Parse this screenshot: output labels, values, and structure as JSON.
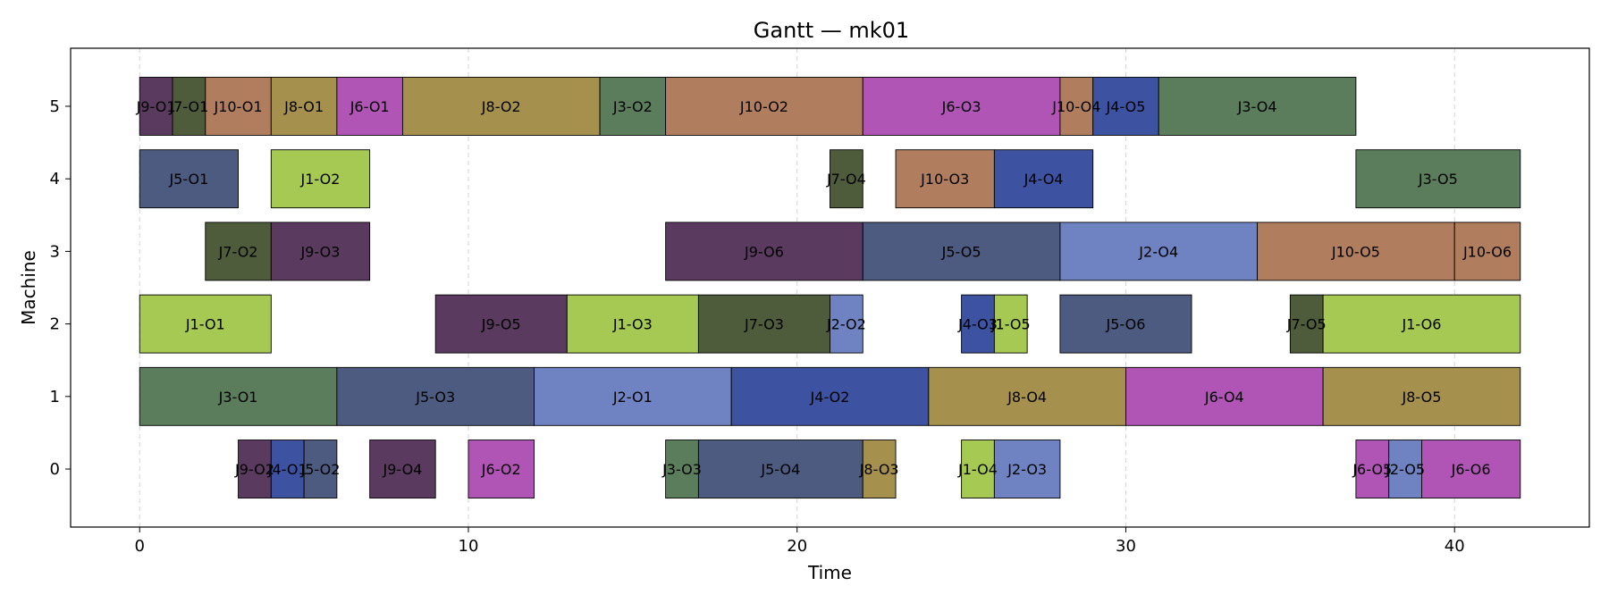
{
  "chart_data": {
    "type": "gantt",
    "title": "Gantt — mk01",
    "xlabel": "Time",
    "ylabel": "Machine",
    "xlim": [
      -2.1,
      44.1
    ],
    "ylim": [
      -0.8,
      5.8
    ],
    "xticks": [
      0,
      10,
      20,
      30,
      40
    ],
    "yticks": [
      0,
      1,
      2,
      3,
      4,
      5
    ],
    "grid": "vertical dashed at x ticks",
    "job_colors": {
      "J1": "#a6c954",
      "J2": "#6f83c2",
      "J3": "#5b7d5b",
      "J4": "#3d52a0",
      "J5": "#4d5b80",
      "J6": "#b055b5",
      "J7": "#4f5c3b",
      "J8": "#a6904e",
      "J9": "#5a3b5f",
      "J10": "#b07e5f"
    },
    "operations": [
      {
        "machine": 5,
        "start": 0,
        "end": 1,
        "job": "J9",
        "label": "J9-O1"
      },
      {
        "machine": 5,
        "start": 1,
        "end": 2,
        "job": "J7",
        "label": "J7-O1"
      },
      {
        "machine": 5,
        "start": 2,
        "end": 4,
        "job": "J10",
        "label": "J10-O1"
      },
      {
        "machine": 5,
        "start": 4,
        "end": 6,
        "job": "J8",
        "label": "J8-O1"
      },
      {
        "machine": 5,
        "start": 6,
        "end": 8,
        "job": "J6",
        "label": "J6-O1"
      },
      {
        "machine": 5,
        "start": 8,
        "end": 14,
        "job": "J8",
        "label": "J8-O2"
      },
      {
        "machine": 5,
        "start": 14,
        "end": 16,
        "job": "J3",
        "label": "J3-O2"
      },
      {
        "machine": 5,
        "start": 16,
        "end": 22,
        "job": "J10",
        "label": "J10-O2"
      },
      {
        "machine": 5,
        "start": 22,
        "end": 28,
        "job": "J6",
        "label": "J6-O3"
      },
      {
        "machine": 5,
        "start": 28,
        "end": 29,
        "job": "J10",
        "label": "J10-O4"
      },
      {
        "machine": 5,
        "start": 29,
        "end": 31,
        "job": "J4",
        "label": "J4-O5"
      },
      {
        "machine": 5,
        "start": 31,
        "end": 37,
        "job": "J3",
        "label": "J3-O4"
      },
      {
        "machine": 4,
        "start": 0,
        "end": 3,
        "job": "J5",
        "label": "J5-O1"
      },
      {
        "machine": 4,
        "start": 4,
        "end": 7,
        "job": "J1",
        "label": "J1-O2"
      },
      {
        "machine": 4,
        "start": 21,
        "end": 22,
        "job": "J7",
        "label": "J7-O4"
      },
      {
        "machine": 4,
        "start": 23,
        "end": 26,
        "job": "J10",
        "label": "J10-O3"
      },
      {
        "machine": 4,
        "start": 26,
        "end": 29,
        "job": "J4",
        "label": "J4-O4"
      },
      {
        "machine": 4,
        "start": 37,
        "end": 42,
        "job": "J3",
        "label": "J3-O5"
      },
      {
        "machine": 3,
        "start": 2,
        "end": 4,
        "job": "J7",
        "label": "J7-O2"
      },
      {
        "machine": 3,
        "start": 4,
        "end": 7,
        "job": "J9",
        "label": "J9-O3"
      },
      {
        "machine": 3,
        "start": 16,
        "end": 22,
        "job": "J9",
        "label": "J9-O6"
      },
      {
        "machine": 3,
        "start": 22,
        "end": 28,
        "job": "J5",
        "label": "J5-O5"
      },
      {
        "machine": 3,
        "start": 28,
        "end": 34,
        "job": "J2",
        "label": "J2-O4"
      },
      {
        "machine": 3,
        "start": 34,
        "end": 40,
        "job": "J10",
        "label": "J10-O5"
      },
      {
        "machine": 3,
        "start": 40,
        "end": 42,
        "job": "J10",
        "label": "J10-O6"
      },
      {
        "machine": 2,
        "start": 0,
        "end": 4,
        "job": "J1",
        "label": "J1-O1"
      },
      {
        "machine": 2,
        "start": 9,
        "end": 13,
        "job": "J9",
        "label": "J9-O5"
      },
      {
        "machine": 2,
        "start": 13,
        "end": 17,
        "job": "J1",
        "label": "J1-O3"
      },
      {
        "machine": 2,
        "start": 17,
        "end": 21,
        "job": "J7",
        "label": "J7-O3"
      },
      {
        "machine": 2,
        "start": 21,
        "end": 22,
        "job": "J2",
        "label": "J2-O2"
      },
      {
        "machine": 2,
        "start": 25,
        "end": 26,
        "job": "J4",
        "label": "J4-O3"
      },
      {
        "machine": 2,
        "start": 26,
        "end": 27,
        "job": "J1",
        "label": "J1-O5"
      },
      {
        "machine": 2,
        "start": 28,
        "end": 32,
        "job": "J5",
        "label": "J5-O6"
      },
      {
        "machine": 2,
        "start": 35,
        "end": 36,
        "job": "J7",
        "label": "J7-O5"
      },
      {
        "machine": 2,
        "start": 36,
        "end": 42,
        "job": "J1",
        "label": "J1-O6"
      },
      {
        "machine": 1,
        "start": 0,
        "end": 6,
        "job": "J3",
        "label": "J3-O1"
      },
      {
        "machine": 1,
        "start": 6,
        "end": 12,
        "job": "J5",
        "label": "J5-O3"
      },
      {
        "machine": 1,
        "start": 12,
        "end": 18,
        "job": "J2",
        "label": "J2-O1"
      },
      {
        "machine": 1,
        "start": 18,
        "end": 24,
        "job": "J4",
        "label": "J4-O2"
      },
      {
        "machine": 1,
        "start": 24,
        "end": 30,
        "job": "J8",
        "label": "J8-O4"
      },
      {
        "machine": 1,
        "start": 30,
        "end": 36,
        "job": "J6",
        "label": "J6-O4"
      },
      {
        "machine": 1,
        "start": 36,
        "end": 42,
        "job": "J8",
        "label": "J8-O5"
      },
      {
        "machine": 0,
        "start": 3,
        "end": 4,
        "job": "J9",
        "label": "J9-O2"
      },
      {
        "machine": 0,
        "start": 4,
        "end": 5,
        "job": "J4",
        "label": "J4-O1"
      },
      {
        "machine": 0,
        "start": 5,
        "end": 6,
        "job": "J5",
        "label": "J5-O2"
      },
      {
        "machine": 0,
        "start": 7,
        "end": 9,
        "job": "J9",
        "label": "J9-O4"
      },
      {
        "machine": 0,
        "start": 10,
        "end": 12,
        "job": "J6",
        "label": "J6-O2"
      },
      {
        "machine": 0,
        "start": 16,
        "end": 17,
        "job": "J3",
        "label": "J3-O3"
      },
      {
        "machine": 0,
        "start": 17,
        "end": 22,
        "job": "J5",
        "label": "J5-O4"
      },
      {
        "machine": 0,
        "start": 22,
        "end": 23,
        "job": "J8",
        "label": "J8-O3"
      },
      {
        "machine": 0,
        "start": 25,
        "end": 26,
        "job": "J1",
        "label": "J1-O4"
      },
      {
        "machine": 0,
        "start": 26,
        "end": 28,
        "job": "J2",
        "label": "J2-O3"
      },
      {
        "machine": 0,
        "start": 37,
        "end": 38,
        "job": "J6",
        "label": "J6-O5"
      },
      {
        "machine": 0,
        "start": 38,
        "end": 39,
        "job": "J2",
        "label": "J2-O5"
      },
      {
        "machine": 0,
        "start": 39,
        "end": 42,
        "job": "J6",
        "label": "J6-O6"
      }
    ]
  }
}
